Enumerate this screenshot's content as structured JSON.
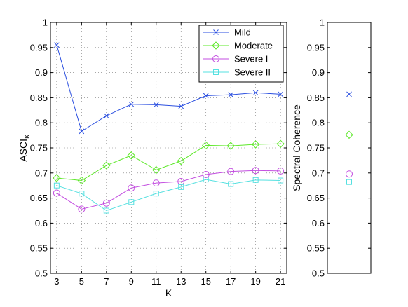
{
  "chart_data": [
    {
      "type": "line",
      "xlabel": "K",
      "ylabel": "ASCI",
      "ylabel_subscript": "K",
      "x": [
        3,
        5,
        7,
        9,
        11,
        13,
        15,
        17,
        19,
        21
      ],
      "xticks": [
        "3",
        "5",
        "7",
        "9",
        "11",
        "13",
        "15",
        "17",
        "19",
        "21"
      ],
      "xlim": [
        2.5,
        21.5
      ],
      "ylim": [
        0.5,
        1.0
      ],
      "yticks": [
        "0.5",
        "0.55",
        "0.6",
        "0.65",
        "0.7",
        "0.75",
        "0.8",
        "0.85",
        "0.9",
        "0.95",
        "1"
      ],
      "grid": true,
      "legend_position": "top-right",
      "series": [
        {
          "name": "Mild",
          "color": "#2b4fe0",
          "marker": "x",
          "values": [
            0.955,
            0.783,
            0.814,
            0.837,
            0.836,
            0.833,
            0.854,
            0.856,
            0.86,
            0.857
          ]
        },
        {
          "name": "Moderate",
          "color": "#5ee82a",
          "marker": "diamond",
          "values": [
            0.69,
            0.685,
            0.715,
            0.735,
            0.706,
            0.724,
            0.755,
            0.754,
            0.757,
            0.758
          ]
        },
        {
          "name": "Severe I",
          "color": "#c34ee0",
          "marker": "circle",
          "values": [
            0.66,
            0.628,
            0.64,
            0.67,
            0.68,
            0.683,
            0.697,
            0.703,
            0.705,
            0.704
          ]
        },
        {
          "name": "Severe II",
          "color": "#55e0e0",
          "marker": "square",
          "values": [
            0.675,
            0.659,
            0.625,
            0.642,
            0.659,
            0.672,
            0.687,
            0.678,
            0.686,
            0.685
          ]
        }
      ]
    },
    {
      "type": "scatter",
      "ylabel": "Spectral Coherence",
      "ylim": [
        0.5,
        1.0
      ],
      "yticks": [
        "0.5",
        "0.55",
        "0.6",
        "0.65",
        "0.7",
        "0.75",
        "0.8",
        "0.85",
        "0.9",
        "0.95",
        "1"
      ],
      "grid": false,
      "points": [
        {
          "series": "Mild",
          "value": 0.857
        },
        {
          "series": "Moderate",
          "value": 0.776
        },
        {
          "series": "Severe I",
          "value": 0.698
        },
        {
          "series": "Severe II",
          "value": 0.682
        }
      ]
    }
  ]
}
